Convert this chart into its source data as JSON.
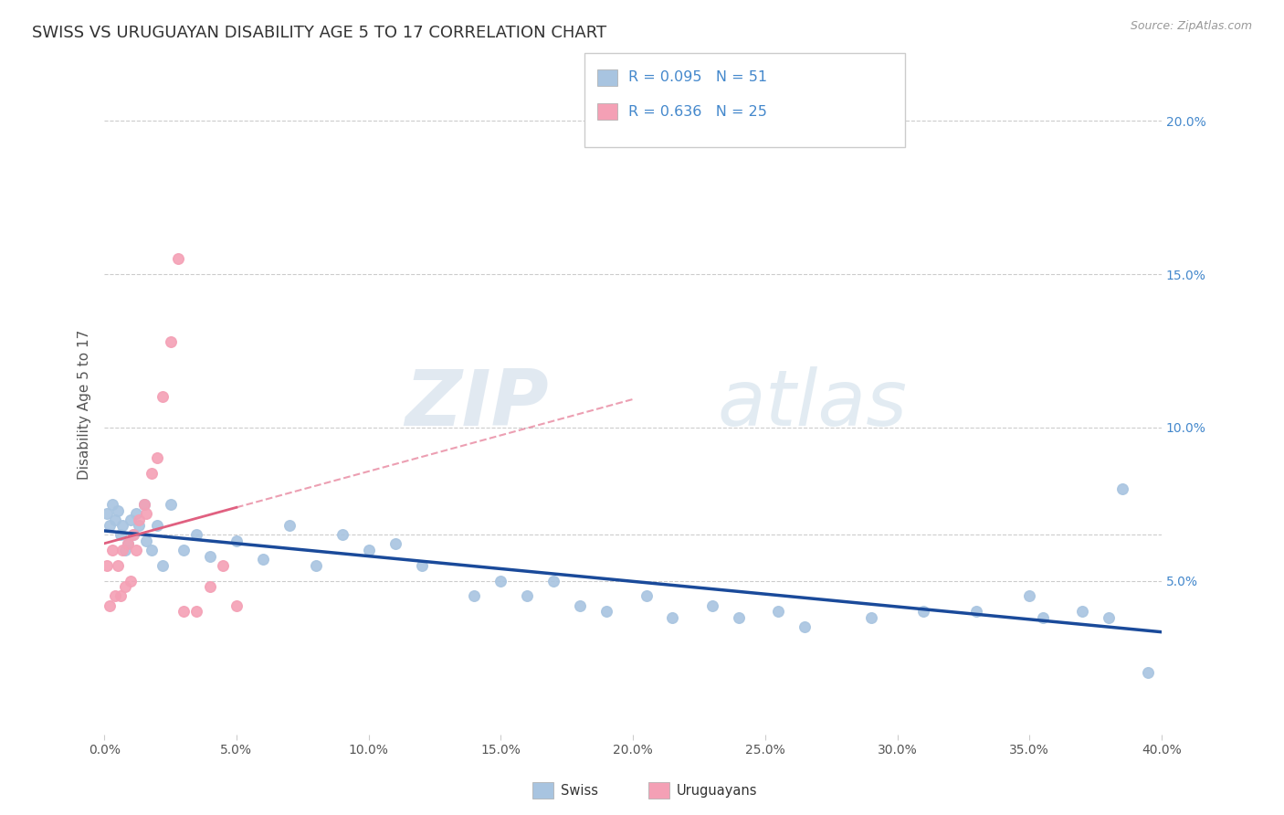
{
  "title": "SWISS VS URUGUAYAN DISABILITY AGE 5 TO 17 CORRELATION CHART",
  "source_text": "Source: ZipAtlas.com",
  "ylabel": "Disability Age 5 to 17",
  "right_yticks": [
    "5.0%",
    "10.0%",
    "15.0%",
    "20.0%"
  ],
  "right_ytick_vals": [
    0.05,
    0.1,
    0.15,
    0.2
  ],
  "xlim": [
    0.0,
    0.4
  ],
  "ylim": [
    0.0,
    0.215
  ],
  "watermark_zip": "ZIP",
  "watermark_atlas": "atlas",
  "swiss_color": "#a8c4e0",
  "swiss_line_color": "#1a4a9a",
  "uruguayan_color": "#f4a0b5",
  "uruguayan_line_color": "#e06080",
  "legend_swiss_label": "Swiss",
  "legend_uruguayan_label": "Uruguayans",
  "r_swiss": "0.095",
  "n_swiss": "51",
  "r_uruguayan": "0.636",
  "n_uruguayan": "25",
  "grid_color": "#cccccc",
  "title_color": "#333333",
  "axis_label_color": "#555555",
  "right_axis_color": "#4488cc",
  "background_color": "#ffffff",
  "title_fontsize": 13,
  "axis_fontsize": 11,
  "tick_fontsize": 10,
  "marker_size": 70,
  "swiss_x": [
    0.001,
    0.002,
    0.003,
    0.004,
    0.005,
    0.006,
    0.007,
    0.008,
    0.009,
    0.01,
    0.011,
    0.012,
    0.013,
    0.015,
    0.016,
    0.018,
    0.02,
    0.022,
    0.025,
    0.03,
    0.035,
    0.04,
    0.05,
    0.06,
    0.07,
    0.08,
    0.09,
    0.1,
    0.11,
    0.12,
    0.14,
    0.15,
    0.16,
    0.17,
    0.18,
    0.19,
    0.205,
    0.215,
    0.23,
    0.24,
    0.255,
    0.265,
    0.29,
    0.31,
    0.33,
    0.35,
    0.355,
    0.37,
    0.38,
    0.385,
    0.395
  ],
  "swiss_y": [
    0.072,
    0.068,
    0.075,
    0.07,
    0.073,
    0.065,
    0.068,
    0.06,
    0.062,
    0.07,
    0.065,
    0.072,
    0.068,
    0.075,
    0.063,
    0.06,
    0.068,
    0.055,
    0.075,
    0.06,
    0.065,
    0.058,
    0.063,
    0.057,
    0.068,
    0.055,
    0.065,
    0.06,
    0.062,
    0.055,
    0.045,
    0.05,
    0.045,
    0.05,
    0.042,
    0.04,
    0.045,
    0.038,
    0.042,
    0.038,
    0.04,
    0.035,
    0.038,
    0.04,
    0.04,
    0.045,
    0.038,
    0.04,
    0.038,
    0.08,
    0.02
  ],
  "uruguayan_x": [
    0.001,
    0.002,
    0.003,
    0.004,
    0.005,
    0.006,
    0.007,
    0.008,
    0.009,
    0.01,
    0.011,
    0.012,
    0.013,
    0.015,
    0.016,
    0.018,
    0.02,
    0.022,
    0.025,
    0.028,
    0.03,
    0.035,
    0.04,
    0.045,
    0.05
  ],
  "uruguayan_y": [
    0.055,
    0.042,
    0.06,
    0.045,
    0.055,
    0.045,
    0.06,
    0.048,
    0.062,
    0.05,
    0.065,
    0.06,
    0.07,
    0.075,
    0.072,
    0.085,
    0.09,
    0.11,
    0.128,
    0.155,
    0.04,
    0.04,
    0.048,
    0.055,
    0.042
  ]
}
